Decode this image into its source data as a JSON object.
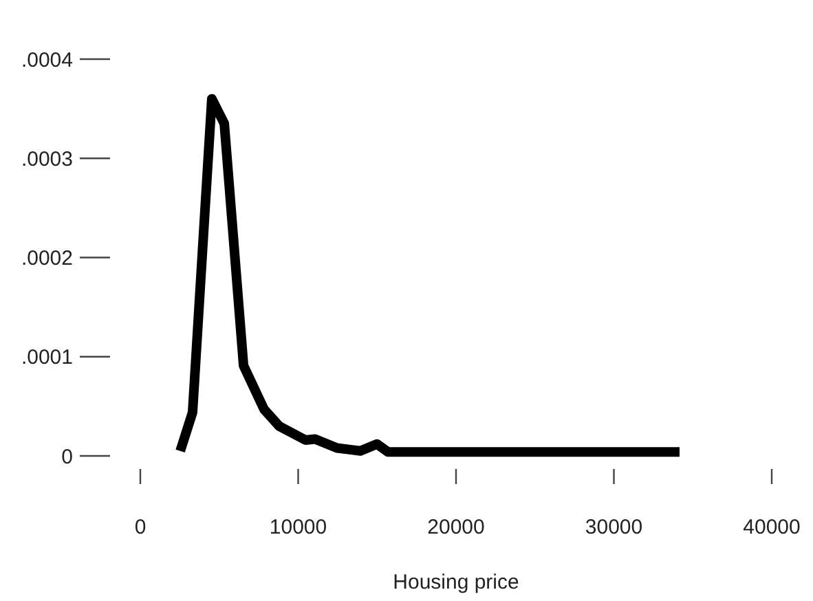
{
  "chart_data": {
    "type": "line",
    "xlabel": "Housing price",
    "xlim": [
      0,
      40000
    ],
    "xticks": [
      0,
      10000,
      20000,
      30000,
      40000
    ],
    "ylim": [
      0,
      0.0004
    ],
    "yticks": [
      {
        "value": 0,
        "label": "0"
      },
      {
        "value": 0.0001,
        "label": ".0001"
      },
      {
        "value": 0.0002,
        "label": ".0002"
      },
      {
        "value": 0.0003,
        "label": ".0003"
      },
      {
        "value": 0.0004,
        "label": ".0004"
      }
    ],
    "grid": false,
    "marker": "none",
    "line_style": "solid",
    "series": [
      {
        "color": "#000000",
        "x": [
          2530,
          3310,
          4530,
          5320,
          6540,
          7840,
          8800,
          10460,
          11070,
          12460,
          13940,
          14990,
          15690,
          34160
        ],
        "values": [
          5e-06,
          4.4e-05,
          0.00036,
          0.000335,
          9.1e-05,
          4.7e-05,
          3e-05,
          1.6e-05,
          1.7e-05,
          8e-06,
          5e-06,
          1.2e-05,
          4e-06,
          4e-06
        ]
      }
    ]
  }
}
